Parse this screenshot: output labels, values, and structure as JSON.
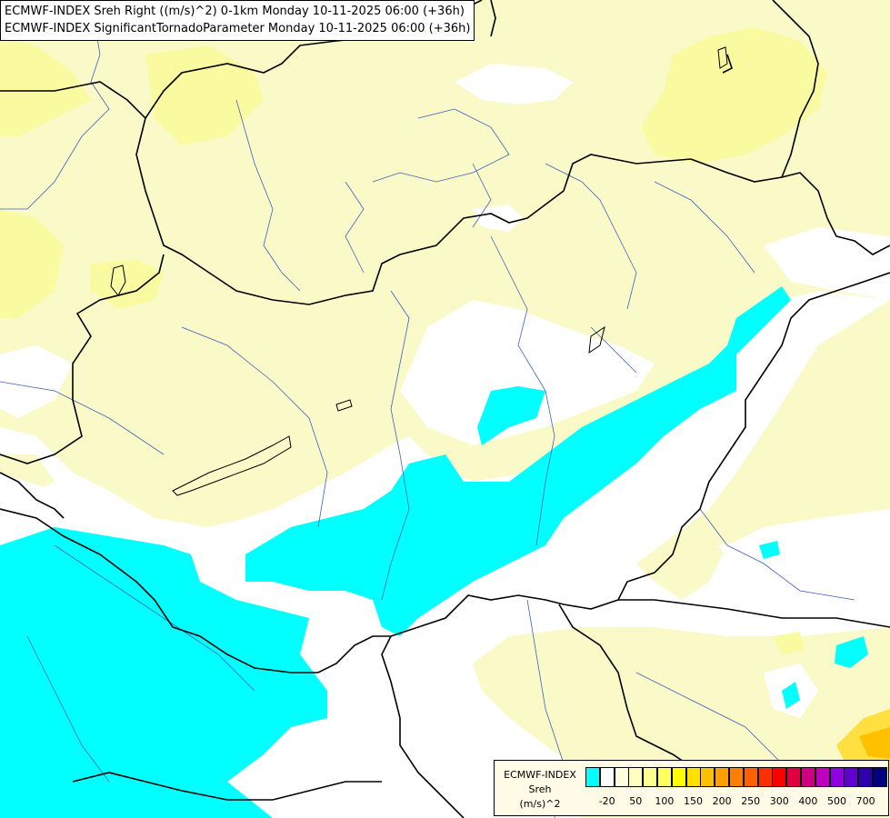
{
  "title": {
    "line1": "ECMWF-INDEX Sreh Right ((m/s)^2) 0-1km Monday 10-11-2025 06:00 (+36h)",
    "line2": "ECMWF-INDEX SignificantTornadoParameter Monday 10-11-2025 06:00 (+36h)"
  },
  "legend": {
    "source": "ECMWF-INDEX",
    "field": "Sreh",
    "unit": "(m/s)^2",
    "ticks": [
      "-20",
      "50",
      "100",
      "150",
      "200",
      "250",
      "300",
      "400",
      "500",
      "700"
    ],
    "colors": [
      "#00ffff",
      "#ffffff",
      "#ffffe0",
      "#ffffc0",
      "#ffff90",
      "#ffff60",
      "#ffff00",
      "#ffe000",
      "#ffc000",
      "#ffa000",
      "#ff8000",
      "#ff6000",
      "#ff3000",
      "#ff0000",
      "#e00040",
      "#d00080",
      "#c000c0",
      "#9000e0",
      "#6000d0",
      "#3000b0",
      "#000080"
    ]
  },
  "fill_colors": {
    "below_minus20": "#00ffff",
    "neutral": "#ffffff",
    "pale_yellow": "#fafac8",
    "yellow": "#fafaa0",
    "orange": "#ffc000"
  }
}
